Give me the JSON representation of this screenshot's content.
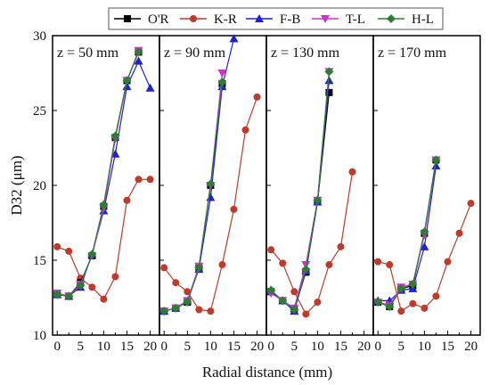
{
  "chart_data": {
    "type": "line",
    "ylabel": "D32 (μm)",
    "xlabel": "Radial distance (mm)",
    "ylim": [
      10,
      30
    ],
    "yticks": [
      "10",
      "15",
      "20",
      "25",
      "30"
    ],
    "xlim": [
      -1,
      22
    ],
    "xticks": [
      "0",
      "5",
      "10",
      "15",
      "20"
    ],
    "legend": {
      "placement": "top",
      "entries": [
        "O'R",
        "K-R",
        "F-B",
        "T-L",
        "H-L"
      ]
    },
    "series_styles": [
      {
        "name": "O'R",
        "color": "#000000",
        "marker": "square"
      },
      {
        "name": "K-R",
        "color": "#c0392b",
        "marker": "circle"
      },
      {
        "name": "F-B",
        "color": "#1f1fd6",
        "marker": "triangle-up"
      },
      {
        "name": "T-L",
        "color": "#cc33cc",
        "marker": "triangle-down"
      },
      {
        "name": "H-L",
        "color": "#2e7d32",
        "marker": "diamond"
      }
    ],
    "panels": [
      {
        "label": "z = 50 mm",
        "series": [
          {
            "name": "O'R",
            "x": [
              0,
              2.5,
              5,
              7.5,
              10,
              12.5,
              15,
              17.5
            ],
            "y": [
              12.8,
              12.6,
              13.5,
              15.3,
              18.6,
              23.2,
              27.0,
              28.9
            ]
          },
          {
            "name": "K-R",
            "x": [
              0,
              2.5,
              5,
              7.5,
              10,
              12.5,
              15,
              17.5,
              20
            ],
            "y": [
              15.9,
              15.6,
              13.8,
              13.2,
              12.4,
              13.9,
              19.0,
              20.4,
              20.4
            ]
          },
          {
            "name": "F-B",
            "x": [
              0,
              2.5,
              5,
              7.5,
              10,
              12.5,
              15,
              17.5,
              20
            ],
            "y": [
              12.7,
              12.6,
              13.2,
              15.4,
              18.3,
              22.1,
              26.6,
              28.3,
              26.5
            ]
          },
          {
            "name": "T-L",
            "x": [
              0,
              2.5,
              5,
              7.5,
              10,
              12.5,
              15,
              17.5
            ],
            "y": [
              12.8,
              12.6,
              13.4,
              15.3,
              18.5,
              23.1,
              27.0,
              29.0
            ]
          },
          {
            "name": "H-L",
            "x": [
              0,
              2.5,
              5,
              7.5,
              10,
              12.5,
              15,
              17.5
            ],
            "y": [
              12.7,
              12.6,
              13.3,
              15.4,
              18.7,
              23.3,
              27.0,
              28.9
            ]
          }
        ]
      },
      {
        "label": "z = 90 mm",
        "series": [
          {
            "name": "O'R",
            "x": [
              0,
              2.5,
              5,
              7.5,
              10,
              12.5
            ],
            "y": [
              11.6,
              11.8,
              12.2,
              14.5,
              20.0,
              26.8
            ]
          },
          {
            "name": "K-R",
            "x": [
              0,
              2.5,
              5,
              7.5,
              10,
              12.5,
              15,
              17.5,
              20
            ],
            "y": [
              14.5,
              13.5,
              12.9,
              11.7,
              11.6,
              14.7,
              18.4,
              23.7,
              25.9
            ]
          },
          {
            "name": "F-B",
            "x": [
              0,
              2.5,
              5,
              7.5,
              10,
              12.5,
              15
            ],
            "y": [
              11.6,
              11.8,
              12.3,
              14.4,
              19.2,
              26.6,
              29.8
            ]
          },
          {
            "name": "T-L",
            "x": [
              0,
              2.5,
              5,
              7.5,
              10,
              12.5
            ],
            "y": [
              11.6,
              11.8,
              12.3,
              14.6,
              20.0,
              27.5
            ]
          },
          {
            "name": "H-L",
            "x": [
              0,
              2.5,
              5,
              7.5,
              10,
              12.5
            ],
            "y": [
              11.6,
              11.8,
              12.2,
              14.5,
              20.1,
              26.9
            ]
          }
        ]
      },
      {
        "label": "z = 130 mm",
        "series": [
          {
            "name": "O'R",
            "x": [
              0,
              2.5,
              5,
              7.5,
              10,
              12.5
            ],
            "y": [
              12.9,
              12.3,
              11.7,
              14.2,
              18.9,
              26.2
            ]
          },
          {
            "name": "K-R",
            "x": [
              0,
              2.5,
              5,
              7.5,
              10,
              12.5,
              15,
              17.5
            ],
            "y": [
              15.7,
              14.8,
              12.9,
              11.4,
              12.2,
              14.7,
              15.9,
              20.9
            ]
          },
          {
            "name": "F-B",
            "x": [
              0,
              2.5,
              5,
              7.5,
              10,
              12.5
            ],
            "y": [
              12.9,
              12.3,
              11.6,
              14.3,
              18.9,
              27.0
            ]
          },
          {
            "name": "T-L",
            "x": [
              0,
              2.5,
              5,
              7.5,
              10,
              12.5
            ],
            "y": [
              12.8,
              12.3,
              11.8,
              14.7,
              19.0,
              27.6
            ]
          },
          {
            "name": "H-L",
            "x": [
              0,
              2.5,
              5,
              7.5,
              10,
              12.5
            ],
            "y": [
              13.0,
              12.3,
              11.7,
              14.4,
              19.0,
              27.6
            ]
          }
        ]
      },
      {
        "label": "z = 170 mm",
        "series": [
          {
            "name": "O'R",
            "x": [
              0,
              2.5,
              5,
              7.5,
              10,
              12.5
            ],
            "y": [
              12.2,
              11.9,
              13.1,
              13.3,
              16.8,
              21.7
            ]
          },
          {
            "name": "K-R",
            "x": [
              0,
              2.5,
              5,
              7.5,
              10,
              12.5,
              15,
              17.5,
              20
            ],
            "y": [
              14.9,
              14.7,
              11.6,
              12.1,
              11.8,
              12.6,
              14.9,
              16.8,
              18.8
            ]
          },
          {
            "name": "F-B",
            "x": [
              0,
              2.5,
              5,
              7.5,
              10,
              12.5
            ],
            "y": [
              12.3,
              12.3,
              13.0,
              13.1,
              15.9,
              21.3
            ]
          },
          {
            "name": "T-L",
            "x": [
              0,
              2.5,
              5,
              7.5,
              10,
              12.5
            ],
            "y": [
              12.2,
              12.0,
              13.2,
              13.4,
              16.7,
              21.7
            ]
          },
          {
            "name": "H-L",
            "x": [
              0,
              2.5,
              5,
              7.5,
              10,
              12.5
            ],
            "y": [
              12.2,
              11.9,
              13.1,
              13.4,
              16.9,
              21.7
            ]
          }
        ]
      }
    ]
  }
}
